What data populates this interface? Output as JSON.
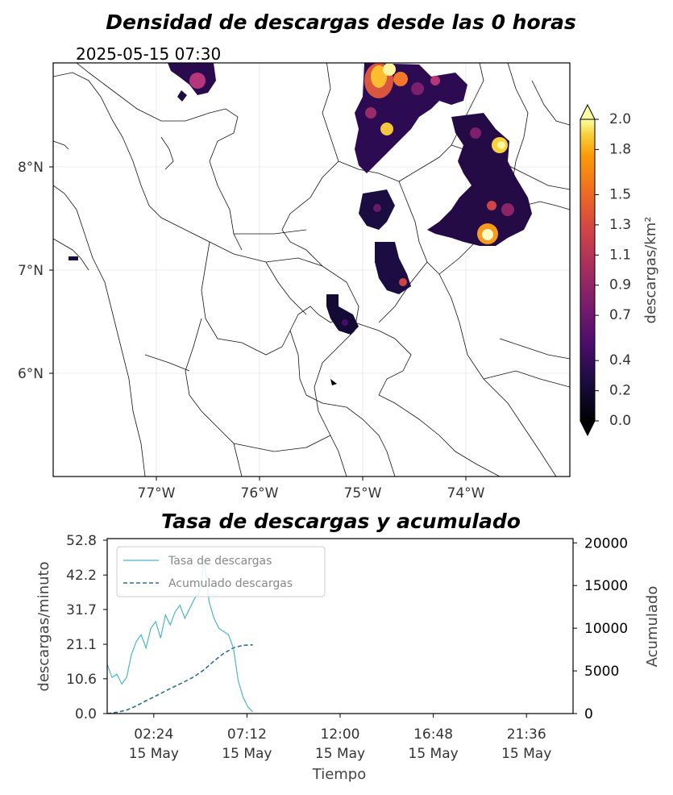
{
  "map": {
    "title": "Densidad de descargas desde las 0 horas",
    "timestamp": "2025-05-15 07:30",
    "lon_ticks": [
      "77°W",
      "76°W",
      "75°W",
      "74°W"
    ],
    "lat_ticks": [
      "8°N",
      "7°N",
      "6°N"
    ],
    "colorbar": {
      "label": "descargas/km²",
      "ticks": [
        "0.0",
        "0.2",
        "0.4",
        "0.7",
        "0.9",
        "1.1",
        "1.3",
        "1.5",
        "1.8",
        "2.0"
      ],
      "colormap": "inferno",
      "range": [
        0,
        2.0
      ]
    }
  },
  "chart_data": {
    "type": "line",
    "title": "Tasa de descargas y acumulado",
    "xlabel": "Tiempo",
    "ylabel": "descargas/minuto",
    "y2label": "Acumulado",
    "x_ticks": [
      "02:24\n15 May",
      "07:12\n15 May",
      "12:00\n15 May",
      "16:48\n15 May",
      "21:36\n15 May"
    ],
    "x_tick_time": [
      "02:24",
      "07:12",
      "12:00",
      "16:48",
      "21:36"
    ],
    "x_tick_date": [
      "15 May",
      "15 May",
      "15 May",
      "15 May",
      "15 May"
    ],
    "y_ticks": [
      "0.0",
      "10.6",
      "21.1",
      "31.7",
      "42.2",
      "52.8"
    ],
    "y2_ticks": [
      "0",
      "5000",
      "10000",
      "15000",
      "20000"
    ],
    "ylim": [
      0,
      52.8
    ],
    "y2lim": [
      0,
      20500
    ],
    "xlim_hours": [
      0,
      24
    ],
    "legend_position": "top-left",
    "series": [
      {
        "name": "Tasa de descargas",
        "axis": "left",
        "color": "#4db6c4",
        "style": "solid",
        "x_hours": [
          0.0,
          0.25,
          0.5,
          0.75,
          1.0,
          1.25,
          1.5,
          1.75,
          2.0,
          2.25,
          2.5,
          2.75,
          3.0,
          3.25,
          3.5,
          3.75,
          4.0,
          4.25,
          4.5,
          4.75,
          5.0,
          5.25,
          5.5,
          5.75,
          6.0,
          6.25,
          6.5,
          6.75,
          7.0,
          7.25,
          7.5
        ],
        "values": [
          15,
          11,
          12,
          9,
          11,
          18,
          22,
          24,
          20,
          26,
          28,
          23,
          30,
          27,
          31,
          33,
          29,
          32,
          35,
          37,
          47,
          34,
          29,
          26,
          25,
          24,
          20,
          10,
          5,
          2,
          0.5
        ]
      },
      {
        "name": "Acumulado descargas",
        "axis": "right",
        "color": "#2e6e8e",
        "style": "dashed",
        "x_hours": [
          0.0,
          0.5,
          1.0,
          1.5,
          2.0,
          2.5,
          3.0,
          3.5,
          4.0,
          4.5,
          5.0,
          5.5,
          6.0,
          6.5,
          7.0,
          7.5
        ],
        "values": [
          0,
          150,
          400,
          900,
          1500,
          2050,
          2650,
          3200,
          3750,
          4350,
          5150,
          6150,
          7050,
          7700,
          8000,
          8050
        ]
      }
    ]
  }
}
